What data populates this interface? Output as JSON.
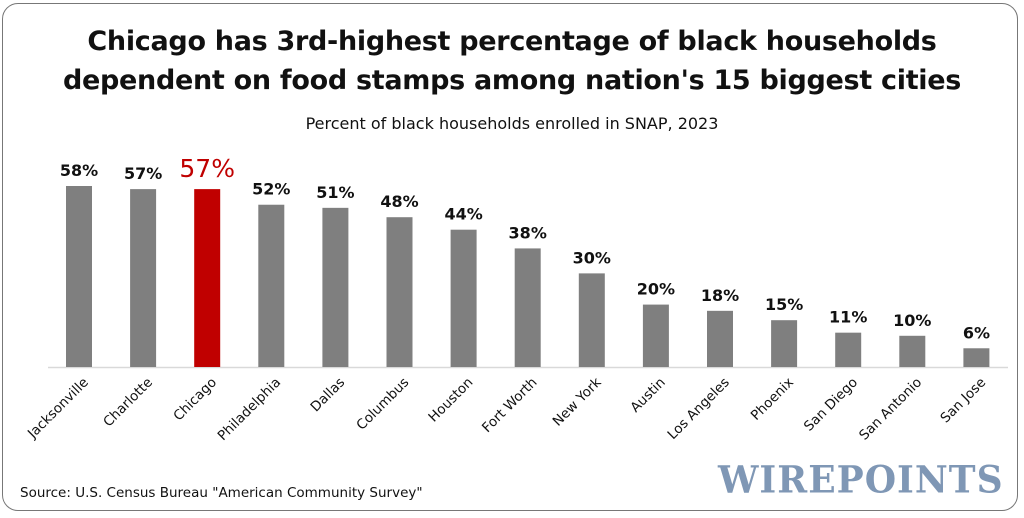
{
  "chart_data": {
    "type": "bar",
    "title": "Chicago has 3rd-highest percentage of black households dependent on food stamps among nation's 15 biggest cities",
    "title_lines": [
      "Chicago has 3rd-highest percentage of black households",
      "dependent on food stamps among nation's 15 biggest cities"
    ],
    "subtitle": "Percent of black households enrolled in SNAP, 2023",
    "xlabel": "",
    "ylabel": "",
    "ylim": [
      0,
      60
    ],
    "grid": false,
    "legend": "none",
    "categories": [
      "Jacksonville",
      "Charlotte",
      "Chicago",
      "Philadelphia",
      "Dallas",
      "Columbus",
      "Houston",
      "Fort Worth",
      "New York",
      "Austin",
      "Los Angeles",
      "Phoenix",
      "San Diego",
      "San Antonio",
      "San Jose"
    ],
    "values": [
      58,
      57,
      57,
      52,
      51,
      48,
      44,
      38,
      30,
      20,
      18,
      15,
      11,
      10,
      6
    ],
    "data_labels": [
      "58%",
      "57%",
      "57%",
      "52%",
      "51%",
      "48%",
      "44%",
      "38%",
      "30%",
      "20%",
      "18%",
      "15%",
      "11%",
      "10%",
      "6%"
    ],
    "highlight_category": "Chicago",
    "colors": {
      "default_bar": "#7f7f7f",
      "highlight_bar": "#c00000",
      "highlight_label": "#c00000",
      "label": "#111111",
      "axis": "#d9d9d9"
    }
  },
  "footer": {
    "source": "Source: U.S. Census Bureau \"American Community Survey\"",
    "brand": "WIREPOINTS",
    "brand_color": "#7f97b5"
  }
}
